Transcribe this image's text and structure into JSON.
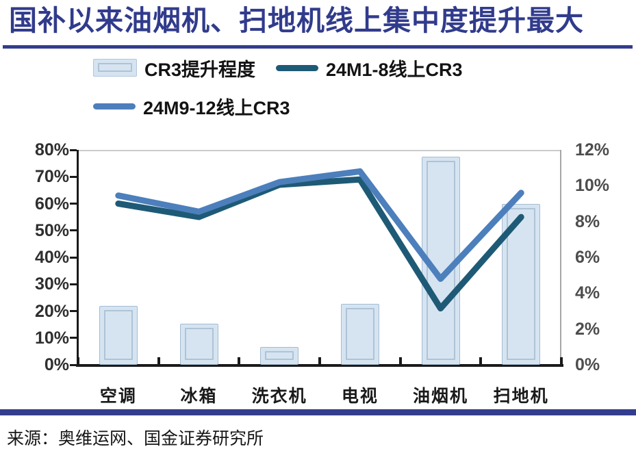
{
  "header": {
    "title": "国补以来油烟机、扫地机线上集中度提升最大"
  },
  "legend": {
    "items": [
      {
        "label": "CR3提升程度",
        "marker": "bar"
      },
      {
        "label": "24M1-8线上CR3",
        "marker": "line",
        "color": "#1E5A76"
      },
      {
        "label": "24M9-12线上CR3",
        "marker": "line",
        "color": "#4C7FBC"
      }
    ]
  },
  "chart_data": {
    "type": "bar+line combo",
    "title": "国补以来油烟机、扫地机线上集中度提升最大",
    "categories": [
      "空调",
      "冰箱",
      "洗衣机",
      "电视",
      "油烟机",
      "扫地机"
    ],
    "series": [
      {
        "name": "CR3提升程度",
        "type": "bar",
        "axis": "right",
        "values": [
          3.3,
          2.3,
          1.0,
          3.4,
          11.6,
          9.0
        ]
      },
      {
        "name": "24M1-8线上CR3",
        "type": "line",
        "axis": "left",
        "values": [
          60,
          55,
          67,
          69,
          21,
          55
        ]
      },
      {
        "name": "24M9-12线上CR3",
        "type": "line",
        "axis": "left",
        "values": [
          63,
          57,
          68,
          72,
          32,
          64
        ]
      }
    ],
    "left_axis": {
      "min": 0,
      "max": 80,
      "step": 10,
      "tick_labels": [
        "80%",
        "70%",
        "60%",
        "50%",
        "40%",
        "30%",
        "20%",
        "10%",
        "0%"
      ]
    },
    "right_axis": {
      "min": 0,
      "max": 12,
      "step": 2,
      "tick_labels": [
        "12%",
        "10%",
        "8%",
        "6%",
        "4%",
        "2%",
        "0%"
      ]
    },
    "grid": "no interior gridlines; top and right plot borders only",
    "legend_position": "top-left, two rows"
  },
  "colors": {
    "accent_navy": "#333D8E",
    "title_text": "#313B8C",
    "bar_fill": "#D6E4F1",
    "bar_border": "#A3BCD1",
    "dark_line": "#1E5A76",
    "light_line": "#4C7FBC"
  },
  "footer": {
    "source": "来源：奥维运网、国金证券研究所"
  }
}
